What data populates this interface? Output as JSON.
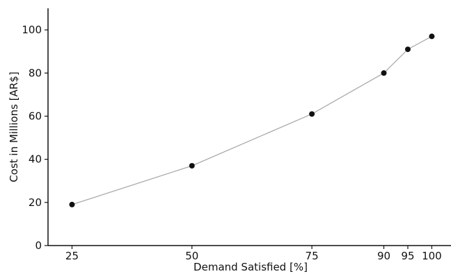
{
  "chart_data": {
    "type": "line",
    "title": "",
    "xlabel": "Demand Satisfied [%]",
    "ylabel": "Cost in Millions [AR$]",
    "x": [
      25,
      50,
      75,
      90,
      95,
      100
    ],
    "series": [
      {
        "values": [
          19,
          37,
          61,
          80,
          91,
          97
        ]
      }
    ],
    "xlim": [
      20,
      104
    ],
    "ylim": [
      0,
      110
    ],
    "xticks": [
      25,
      50,
      75,
      90,
      95,
      100
    ],
    "yticks": [
      0,
      20,
      40,
      60,
      80,
      100
    ],
    "grid": false,
    "legend": "none",
    "colors": {
      "line": "#aaaaaa",
      "marker": "#111111",
      "axis": "#111111"
    }
  }
}
